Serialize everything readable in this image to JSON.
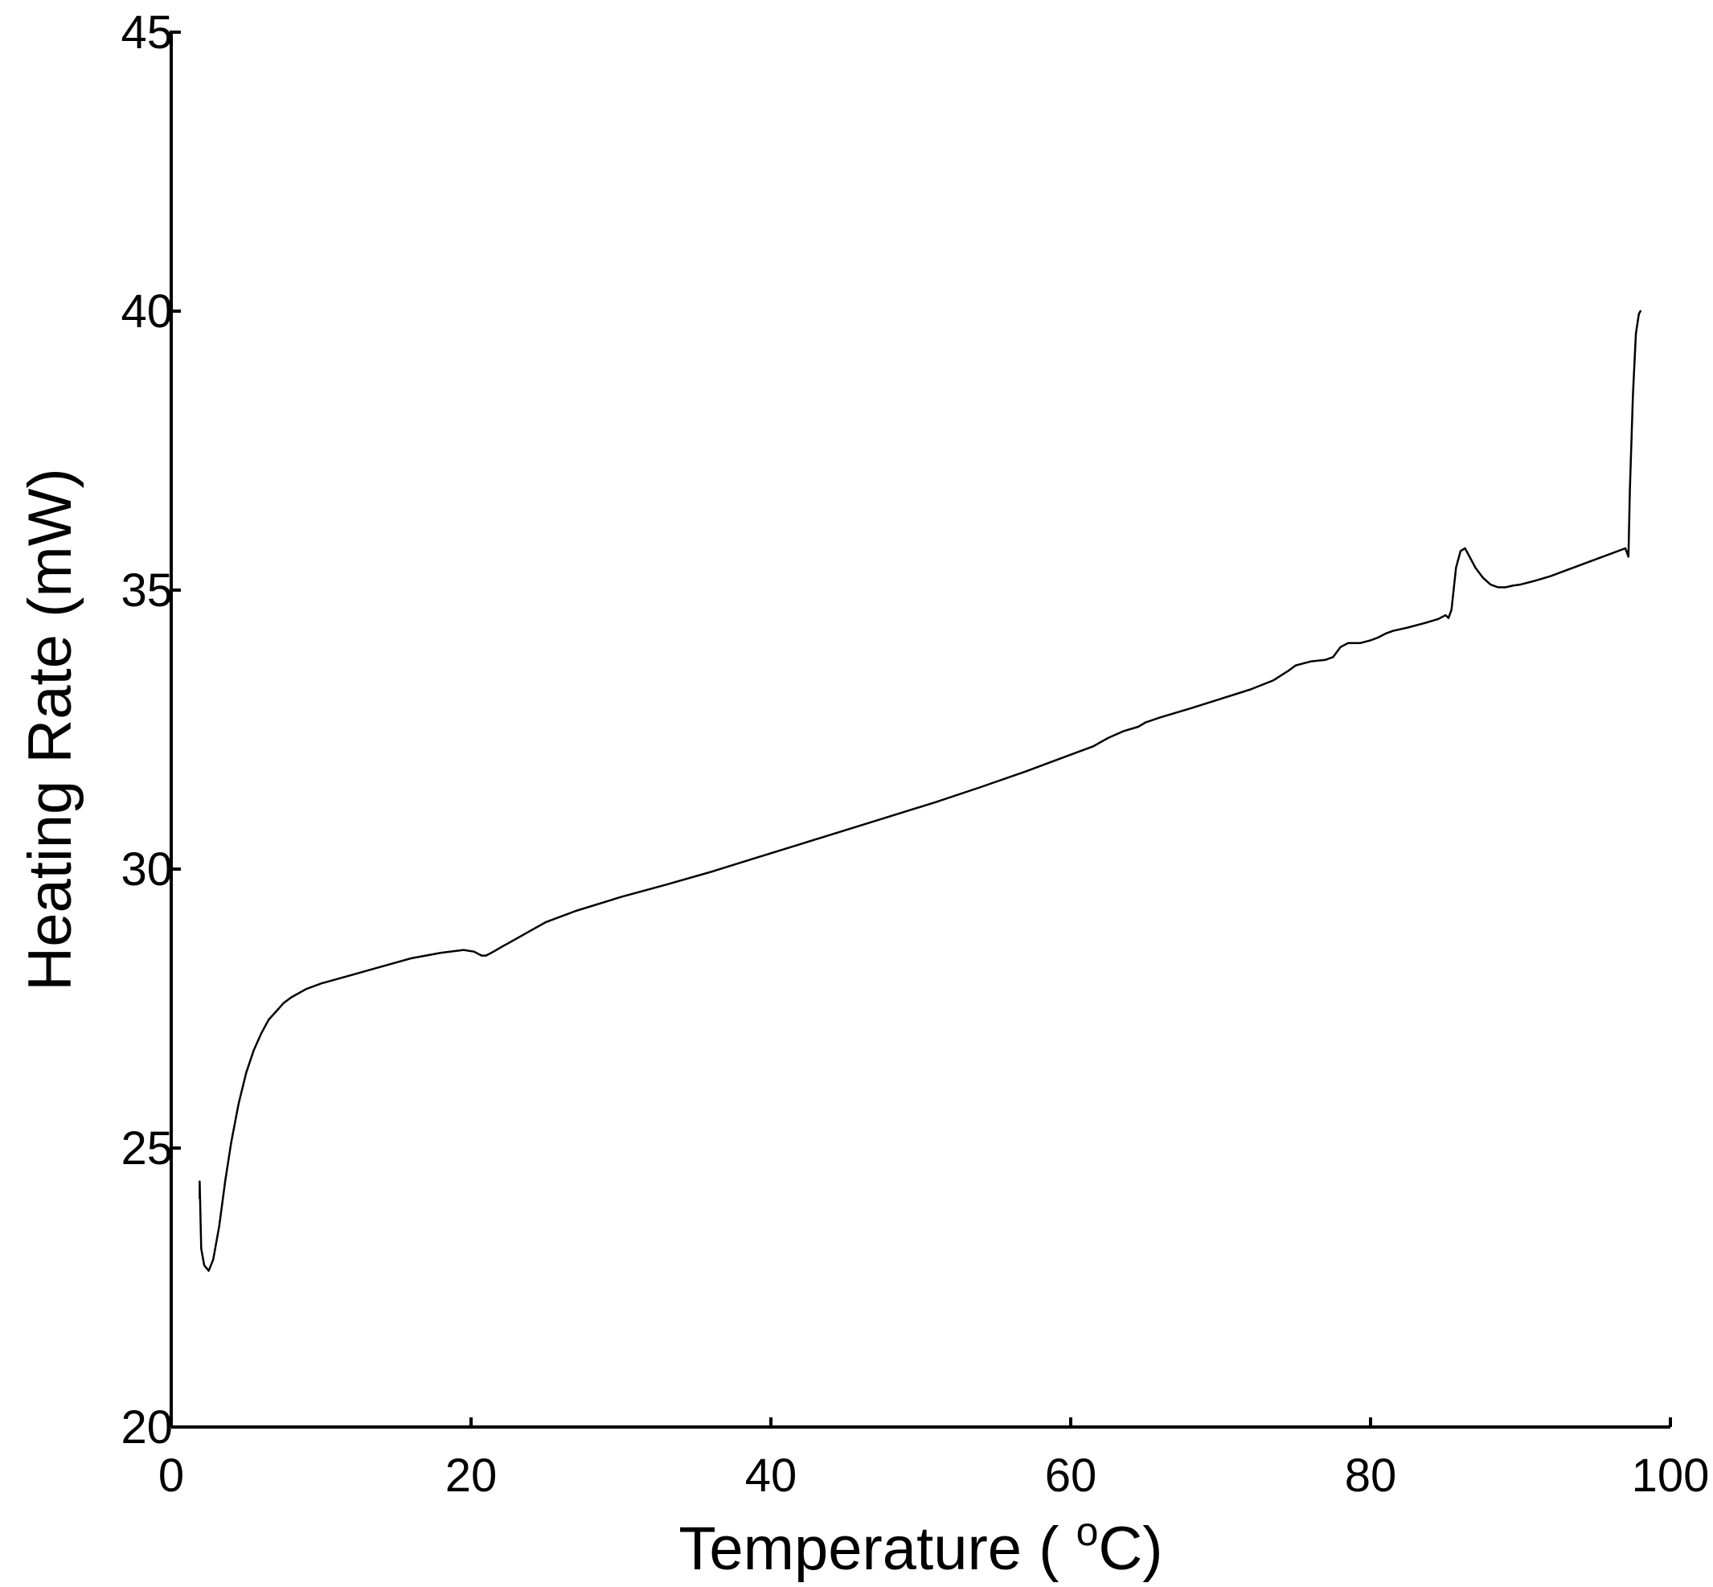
{
  "chart_data": {
    "type": "line",
    "title": "",
    "xlabel": "Temperature ( °C)",
    "xlabel_parts": {
      "prefix": "Temperature ( ",
      "superscript": "o",
      "suffix": "C)"
    },
    "ylabel": "Heating Rate (mW)",
    "xlim": [
      0,
      100
    ],
    "ylim": [
      20,
      45
    ],
    "xticks": [
      0,
      20,
      40,
      60,
      80,
      100
    ],
    "yticks": [
      20,
      25,
      30,
      35,
      40,
      45
    ],
    "grid": false,
    "legend": "none",
    "line_color": "#000000",
    "series": [
      {
        "x": [
          1.9,
          1.9,
          2.0,
          2.2,
          2.5,
          2.8,
          3.2,
          3.6,
          4.0,
          4.5,
          5.0,
          5.5,
          6.0,
          6.5,
          7.0,
          7.5,
          8.0,
          9.0,
          10.0,
          12.0,
          14.0,
          16.0,
          18.0,
          19.5,
          20.2,
          20.7,
          21.0,
          21.5,
          22.0,
          23.0,
          24.0,
          25.0,
          27.0,
          30.0,
          33.0,
          36.0,
          39.0,
          42.0,
          45.0,
          48.0,
          51.0,
          54.0,
          57.0,
          60.0,
          61.5,
          62.5,
          63.5,
          64.5,
          65.0,
          66.0,
          68.0,
          70.0,
          72.0,
          73.5,
          74.5,
          75.0,
          76.0,
          77.0,
          77.5,
          78.0,
          78.5,
          79.3,
          80.0,
          80.5,
          81.0,
          81.5,
          82.5,
          83.5,
          84.5,
          85.0,
          85.2,
          85.4,
          85.7,
          86.0,
          86.3,
          86.6,
          87.0,
          87.5,
          88.0,
          88.5,
          89.0,
          89.5,
          90.0,
          91.0,
          92.0,
          93.0,
          94.0,
          95.0,
          96.0,
          97.0,
          97.2,
          97.3,
          97.5,
          97.7,
          97.9,
          98.0
        ],
        "y": [
          24.1,
          24.4,
          23.2,
          22.9,
          22.8,
          23.0,
          23.6,
          24.4,
          25.1,
          25.8,
          26.35,
          26.75,
          27.05,
          27.3,
          27.45,
          27.6,
          27.7,
          27.85,
          27.95,
          28.1,
          28.25,
          28.4,
          28.5,
          28.55,
          28.52,
          28.45,
          28.45,
          28.52,
          28.6,
          28.75,
          28.9,
          29.05,
          29.25,
          29.5,
          29.72,
          29.95,
          30.2,
          30.45,
          30.7,
          30.95,
          31.2,
          31.47,
          31.75,
          32.05,
          32.2,
          32.35,
          32.47,
          32.55,
          32.63,
          32.72,
          32.88,
          33.05,
          33.22,
          33.38,
          33.55,
          33.65,
          33.72,
          33.75,
          33.8,
          33.98,
          34.05,
          34.05,
          34.1,
          34.15,
          34.22,
          34.27,
          34.33,
          34.4,
          34.48,
          34.55,
          34.5,
          34.65,
          35.4,
          35.7,
          35.75,
          35.6,
          35.4,
          35.22,
          35.1,
          35.05,
          35.05,
          35.08,
          35.1,
          35.17,
          35.25,
          35.35,
          35.45,
          35.55,
          35.65,
          35.75,
          35.6,
          36.8,
          38.5,
          39.6,
          39.95,
          40.0
        ]
      }
    ]
  }
}
